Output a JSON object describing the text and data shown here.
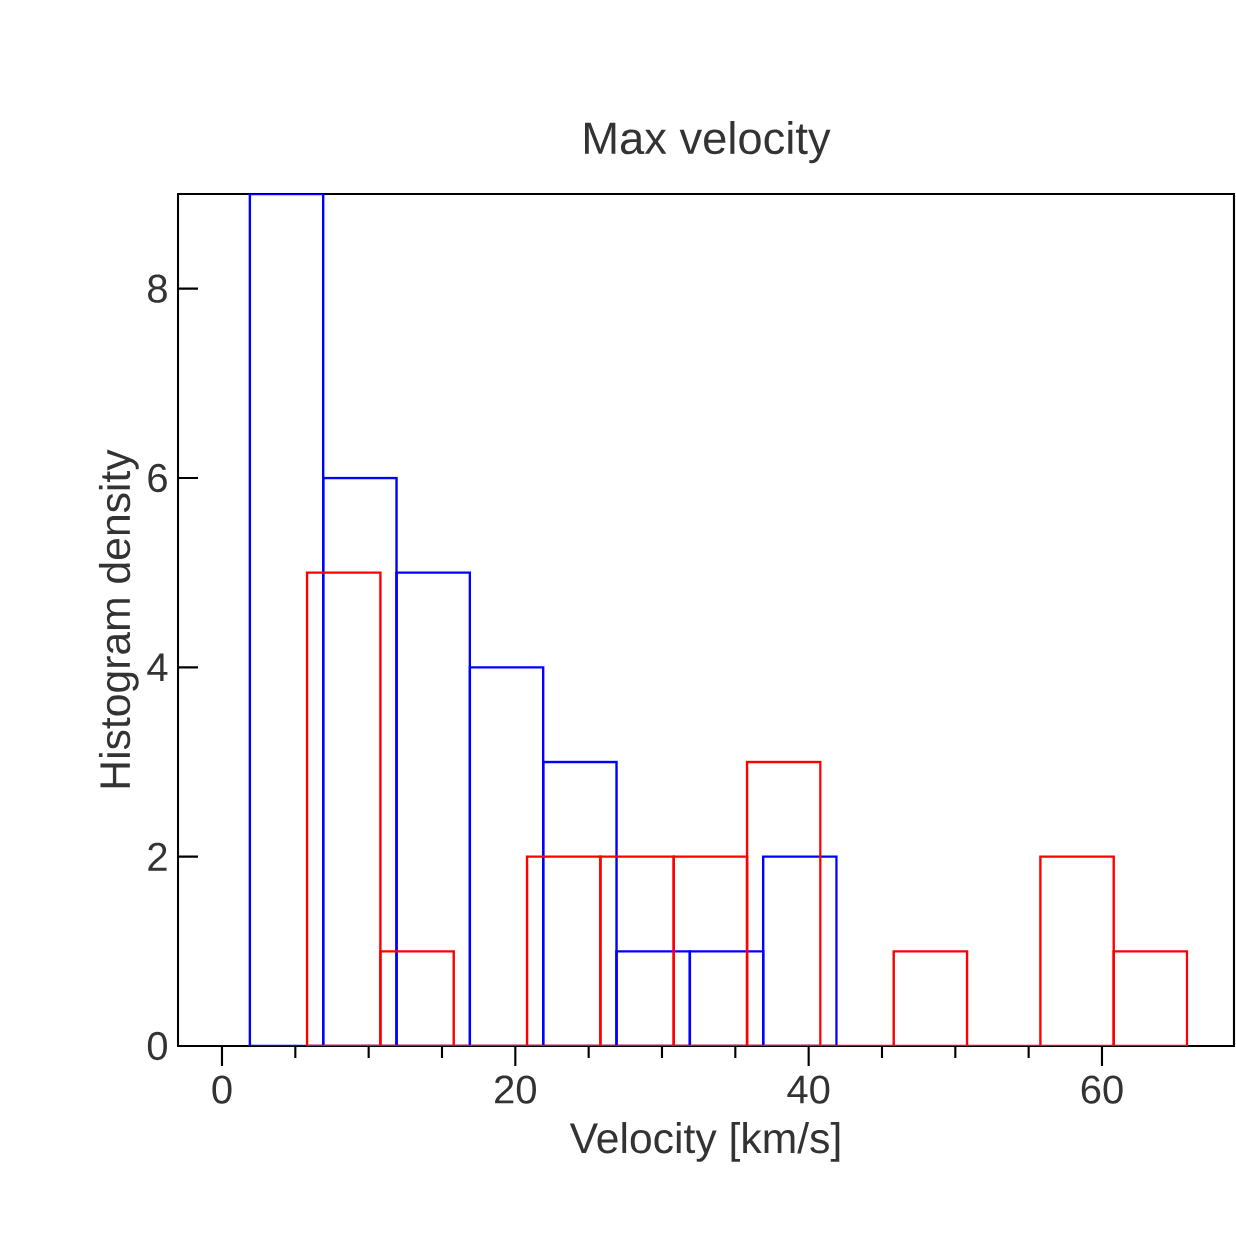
{
  "chart_data": {
    "type": "bar",
    "title": "Max velocity",
    "xlabel": "Velocity [km/s]",
    "ylabel": "Histogram density",
    "series": [
      {
        "color": "#0000ff",
        "x": [
          4.4,
          9.4,
          14.4,
          19.4,
          24.4,
          29.4,
          34.4,
          39.4
        ],
        "values": [
          9,
          6,
          5,
          4,
          3,
          1,
          1,
          2
        ]
      },
      {
        "color": "#ff0000",
        "x": [
          8.3,
          13.3,
          18.3,
          23.3,
          28.3,
          33.3,
          38.3,
          43.3,
          48.3,
          53.3,
          58.3,
          63.3
        ],
        "values": [
          5,
          1,
          0,
          2,
          2,
          2,
          3,
          0,
          1,
          0,
          2,
          1
        ]
      }
    ],
    "xlim": [
      -3,
      69
    ],
    "ylim": [
      0,
      9
    ],
    "xticks": [
      {
        "value": 0,
        "label": "0"
      },
      {
        "value": 20,
        "label": "20"
      },
      {
        "value": 40,
        "label": "40"
      },
      {
        "value": 60,
        "label": "60"
      }
    ],
    "yticks": [
      {
        "value": 0,
        "label": "0"
      },
      {
        "value": 2,
        "label": "2"
      },
      {
        "value": 4,
        "label": "4"
      },
      {
        "value": 6,
        "label": "6"
      },
      {
        "value": 8,
        "label": "8"
      }
    ]
  }
}
